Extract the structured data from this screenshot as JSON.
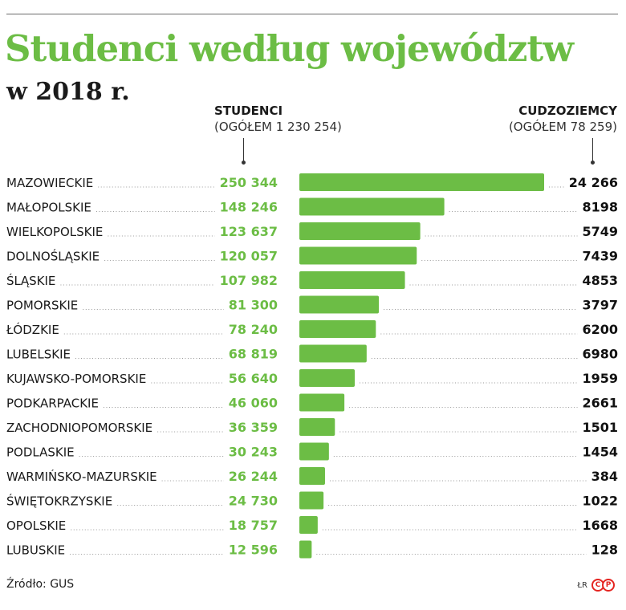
{
  "header": {
    "title": "Studenci według województw",
    "subtitle": "w 2018 r."
  },
  "columns": {
    "students_heading": "STUDENCI",
    "students_total": "(OGÓŁEM 1 230 254)",
    "foreigners_heading": "CUDZOZIEMCY",
    "foreigners_total": "(OGÓŁEM 78 259)"
  },
  "footer": {
    "source": "Źródło: GUS",
    "credit": "ŁR",
    "logo_text": "CP"
  },
  "colors": {
    "accent": "#6cbd45",
    "text": "#1a1a1a",
    "logo": "#e52521"
  },
  "chart_data": {
    "type": "bar",
    "orientation": "horizontal",
    "categories": [
      "MAZOWIECKIE",
      "MAŁOPOLSKIE",
      "WIELKOPOLSKIE",
      "DOLNOŚLĄSKIE",
      "ŚLĄSKIE",
      "POMORSKIE",
      "ŁÓDZKIE",
      "LUBELSKIE",
      "KUJAWSKO-POMORSKIE",
      "PODKARPACKIE",
      "ZACHODNIOPOMORSKIE",
      "PODLASKIE",
      "WARMIŃSKO-MAZURSKIE",
      "ŚWIĘTOKRZYSKIE",
      "OPOLSKIE",
      "LUBUSKIE"
    ],
    "series": [
      {
        "name": "STUDENCI",
        "values": [
          250344,
          148246,
          123637,
          120057,
          107982,
          81300,
          78240,
          68819,
          56640,
          46060,
          36359,
          30243,
          26244,
          24730,
          18757,
          12596
        ],
        "labels": [
          "250 344",
          "148 246",
          "123 637",
          "120 057",
          "107 982",
          "81 300",
          "78 240",
          "68 819",
          "56 640",
          "46 060",
          "36 359",
          "30 243",
          "26 244",
          "24 730",
          "18 757",
          "12 596"
        ]
      },
      {
        "name": "CUDZOZIEMCY",
        "values": [
          24266,
          8198,
          5749,
          7439,
          4853,
          3797,
          6200,
          6980,
          1959,
          2661,
          1501,
          1454,
          384,
          1022,
          1668,
          128
        ],
        "labels": [
          "24 266",
          "8198",
          "5749",
          "7439",
          "4853",
          "3797",
          "6200",
          "6980",
          "1959",
          "2661",
          "1501",
          "1454",
          "384",
          "1022",
          "1668",
          "128"
        ]
      }
    ],
    "grid": false,
    "legend": "none"
  }
}
